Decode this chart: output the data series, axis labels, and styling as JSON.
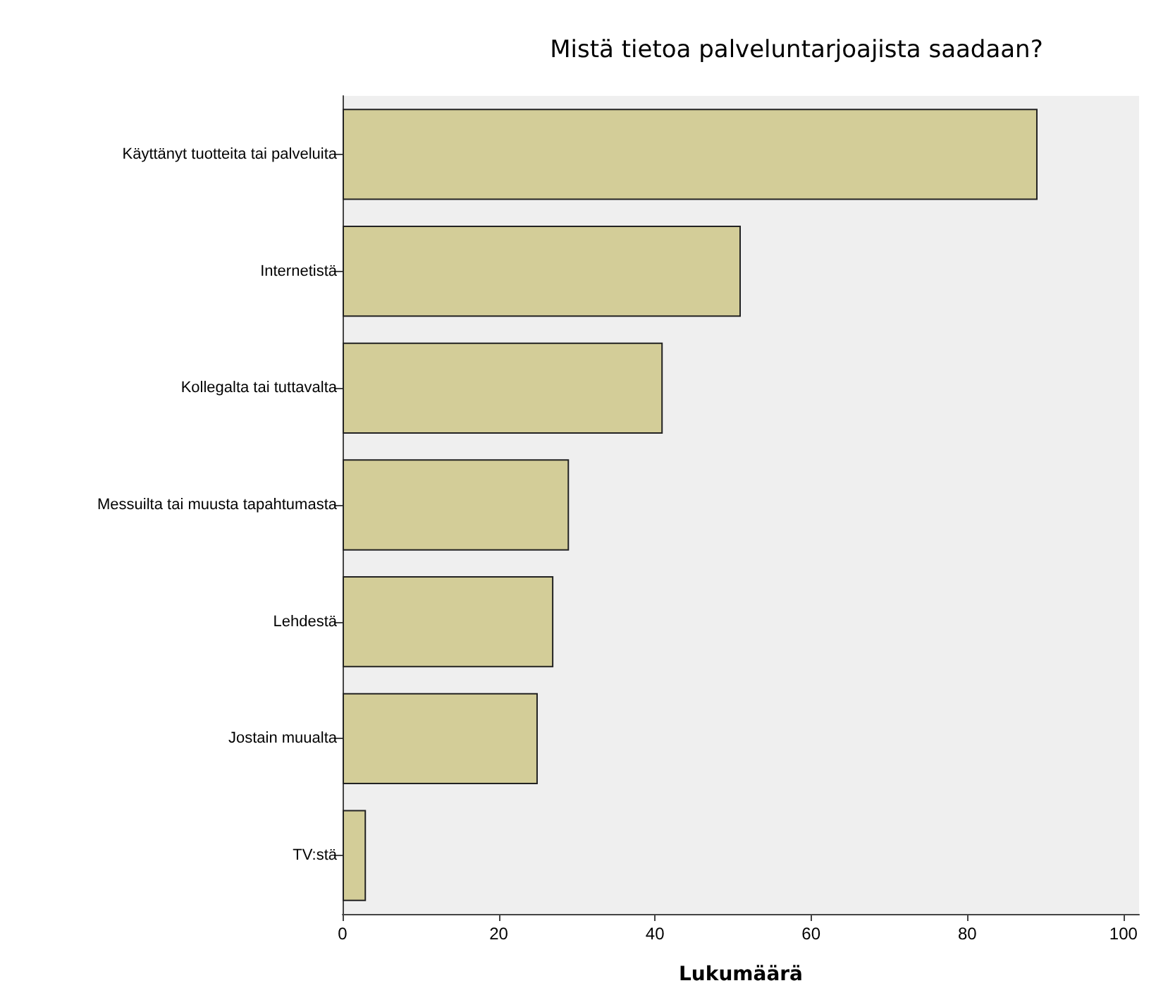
{
  "chart_data": {
    "type": "bar",
    "orientation": "horizontal",
    "title": "Mistä tietoa palveluntarjoajista saadaan?",
    "xlabel": "Lukumäärä",
    "categories": [
      "Käyttänyt tuotteita tai palveluita",
      "Internetistä",
      "Kollegalta tai tuttavalta",
      "Messuilta tai muusta tapahtumasta",
      "Lehdestä",
      "Jostain muualta",
      "TV:stä"
    ],
    "values": [
      89,
      51,
      41,
      29,
      27,
      25,
      3
    ],
    "color": "#d3cd98",
    "xlim": [
      0,
      102
    ],
    "xticks": [
      0,
      20,
      40,
      60,
      80,
      100
    ],
    "grid": false
  }
}
